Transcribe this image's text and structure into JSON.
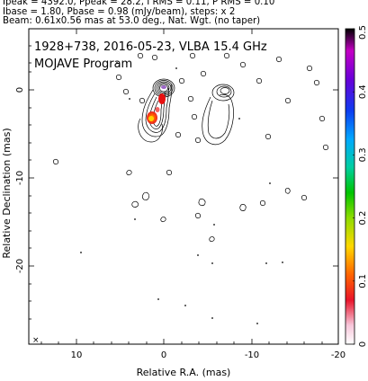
{
  "header": {
    "line1": "Ipeak = 4392.0, Ppeak = 28.2, I RMS = 0.11, P RMS = 0.10",
    "line2": "Ibase = 1.80, Pbase = 0.98 (mJy/beam), steps: x 2",
    "line3": "Beam: 0.61x0.56 mas at 53.0 deg., Nat. Wgt. (no taper)"
  },
  "plot": {
    "source_title": "1928+738, 2016-05-23, VLBA 15.4 GHz",
    "program_title": "MOJAVE Program",
    "xlabel": "Relative R.A. (mas)",
    "ylabel": "Relative Declination (mas)",
    "x_ticks": [
      "10",
      "0",
      "-10",
      "-20"
    ],
    "y_ticks": [
      "0",
      "-10",
      "-20"
    ],
    "beam_marker": "×"
  },
  "colorbar": {
    "ticks": [
      "0",
      "0.1",
      "0.2",
      "0.3",
      "0.4",
      "0.5"
    ],
    "gradient_colors": [
      "#ffffff",
      "#f7c6da",
      "#e8142a",
      "#ff6400",
      "#ffd800",
      "#8edc00",
      "#00c400",
      "#00cfa0",
      "#00a8ff",
      "#0d3cf0",
      "#6a00d8",
      "#c400c4",
      "#000000"
    ]
  },
  "chart_data": {
    "type": "contour",
    "x_range": [
      15,
      -20
    ],
    "y_range": [
      -27,
      6
    ],
    "xlabel": "Relative R.A. (mas)",
    "ylabel": "Relative Declination (mas)",
    "colorbar_range": [
      0,
      0.5
    ],
    "core_position": [
      0,
      0
    ]
  }
}
